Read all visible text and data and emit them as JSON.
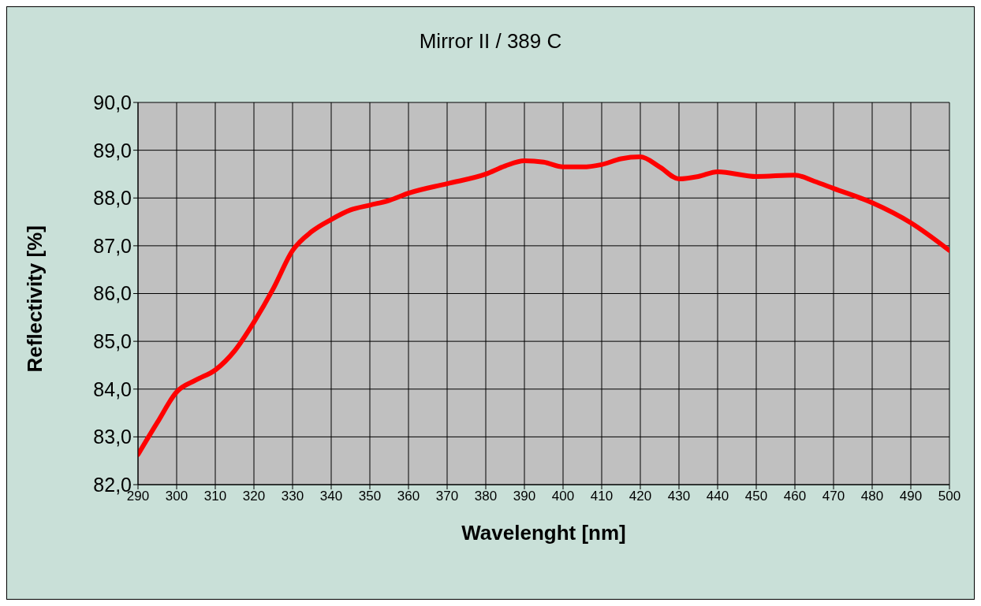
{
  "chart_data": {
    "type": "line",
    "title": "Mirror II / 389 C",
    "xlabel": "Wavelenght [nm]",
    "ylabel": "Reflectivity [%]",
    "x": [
      290,
      295,
      300,
      305,
      310,
      315,
      320,
      325,
      330,
      335,
      340,
      345,
      350,
      355,
      360,
      370,
      380,
      385,
      390,
      395,
      400,
      405,
      410,
      415,
      420,
      425,
      430,
      435,
      440,
      450,
      460,
      465,
      470,
      480,
      490,
      500
    ],
    "series": [
      {
        "color": "#ff0000",
        "values": [
          82.63,
          83.3,
          83.94,
          84.19,
          84.4,
          84.8,
          85.4,
          86.1,
          86.9,
          87.3,
          87.55,
          87.75,
          87.85,
          87.95,
          88.1,
          88.3,
          88.5,
          88.67,
          88.78,
          88.75,
          88.65,
          88.65,
          88.7,
          88.82,
          88.86,
          88.65,
          88.4,
          88.45,
          88.55,
          88.45,
          88.48,
          88.35,
          88.2,
          87.9,
          87.48,
          86.9
        ]
      }
    ],
    "xlim": [
      290,
      500
    ],
    "xticks": [
      290,
      300,
      310,
      320,
      330,
      340,
      350,
      360,
      370,
      380,
      390,
      400,
      410,
      420,
      430,
      440,
      450,
      460,
      470,
      480,
      490,
      500
    ],
    "ylim": [
      82,
      90
    ],
    "yticks": [
      {
        "value": 82,
        "label": "82,0"
      },
      {
        "value": 83,
        "label": "83,0"
      },
      {
        "value": 84,
        "label": "84,0"
      },
      {
        "value": 85,
        "label": "85,0"
      },
      {
        "value": 86,
        "label": "86,0"
      },
      {
        "value": 87,
        "label": "87,0"
      },
      {
        "value": 88,
        "label": "88,0"
      },
      {
        "value": 89,
        "label": "89,0"
      },
      {
        "value": 90,
        "label": "90,0"
      }
    ],
    "grid": true,
    "marker": "none",
    "line_style": "solid",
    "legend": false
  }
}
